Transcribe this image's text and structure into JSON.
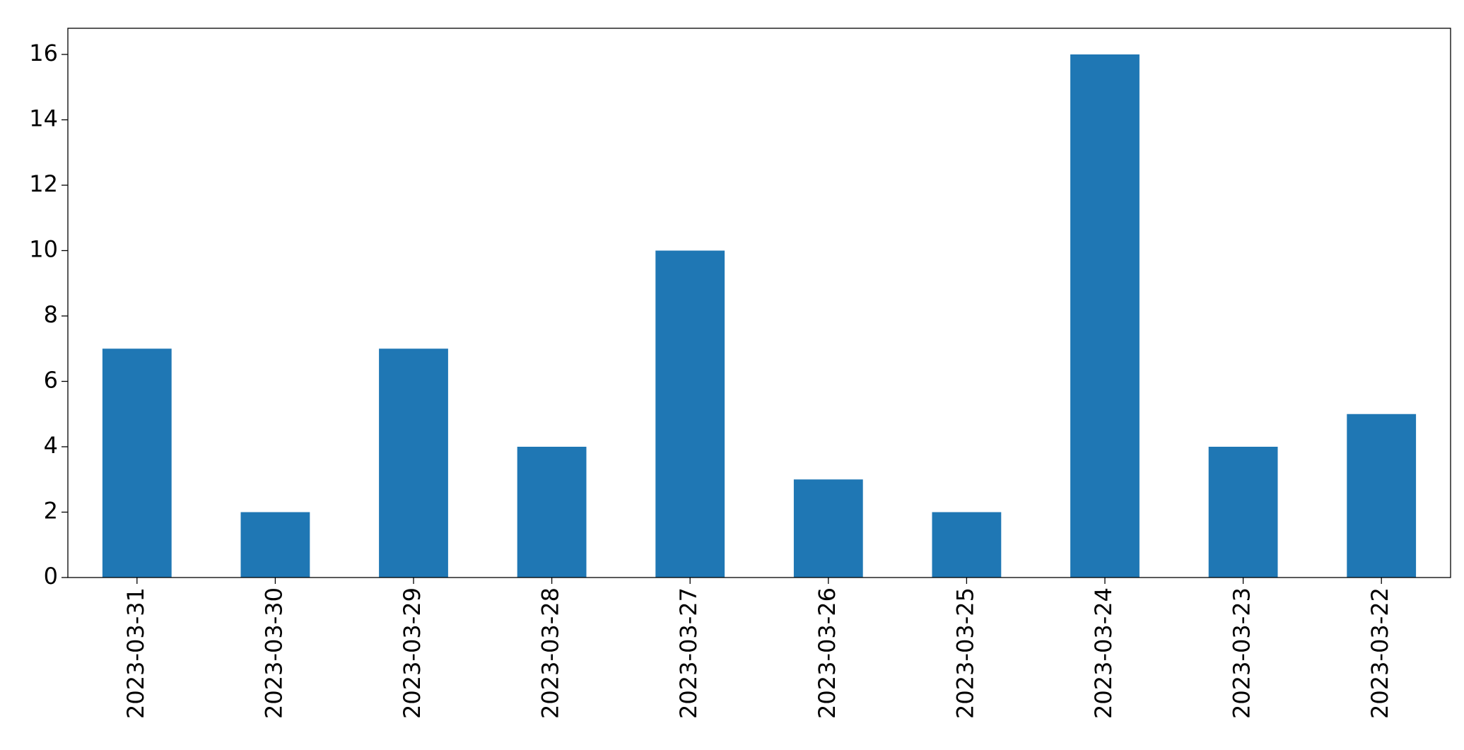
{
  "chart_data": {
    "type": "bar",
    "categories": [
      "2023-03-31",
      "2023-03-30",
      "2023-03-29",
      "2023-03-28",
      "2023-03-27",
      "2023-03-26",
      "2023-03-25",
      "2023-03-24",
      "2023-03-23",
      "2023-03-22"
    ],
    "values": [
      7,
      2,
      7,
      4,
      10,
      3,
      2,
      16,
      4,
      5
    ],
    "color": "#1f77b4",
    "ylim": [
      0,
      16.8
    ],
    "yticks": [
      0,
      2,
      4,
      6,
      8,
      10,
      12,
      14,
      16
    ],
    "grid": false
  }
}
